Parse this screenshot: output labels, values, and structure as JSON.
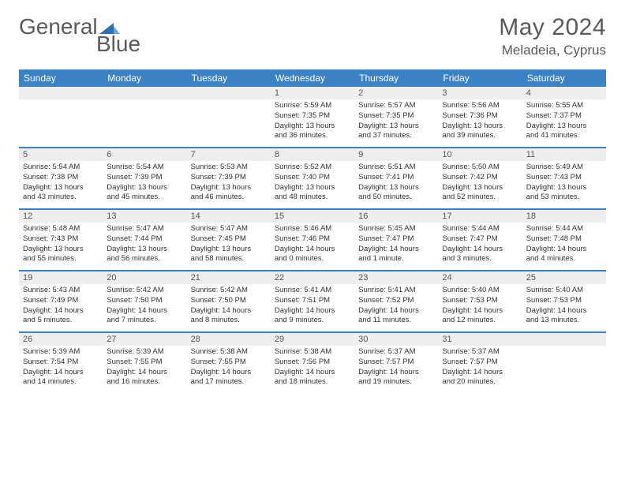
{
  "brand": {
    "part1": "General",
    "part2": "Blue"
  },
  "title": "May 2024",
  "location": "Meladeia, Cyprus",
  "colors": {
    "header_bar": "#3b82c4",
    "weekday_text": "#ffffff",
    "daynum_bg": "#eeeeee",
    "text": "#333333",
    "title_text": "#5a5a5a",
    "logo_blue": "#2e6fb0"
  },
  "weekdays": [
    "Sunday",
    "Monday",
    "Tuesday",
    "Wednesday",
    "Thursday",
    "Friday",
    "Saturday"
  ],
  "weeks": [
    [
      {
        "n": "",
        "lines": []
      },
      {
        "n": "",
        "lines": []
      },
      {
        "n": "",
        "lines": []
      },
      {
        "n": "1",
        "lines": [
          "Sunrise: 5:59 AM",
          "Sunset: 7:35 PM",
          "Daylight: 13 hours",
          "and 36 minutes."
        ]
      },
      {
        "n": "2",
        "lines": [
          "Sunrise: 5:57 AM",
          "Sunset: 7:35 PM",
          "Daylight: 13 hours",
          "and 37 minutes."
        ]
      },
      {
        "n": "3",
        "lines": [
          "Sunrise: 5:56 AM",
          "Sunset: 7:36 PM",
          "Daylight: 13 hours",
          "and 39 minutes."
        ]
      },
      {
        "n": "4",
        "lines": [
          "Sunrise: 5:55 AM",
          "Sunset: 7:37 PM",
          "Daylight: 13 hours",
          "and 41 minutes."
        ]
      }
    ],
    [
      {
        "n": "5",
        "lines": [
          "Sunrise: 5:54 AM",
          "Sunset: 7:38 PM",
          "Daylight: 13 hours",
          "and 43 minutes."
        ]
      },
      {
        "n": "6",
        "lines": [
          "Sunrise: 5:54 AM",
          "Sunset: 7:39 PM",
          "Daylight: 13 hours",
          "and 45 minutes."
        ]
      },
      {
        "n": "7",
        "lines": [
          "Sunrise: 5:53 AM",
          "Sunset: 7:39 PM",
          "Daylight: 13 hours",
          "and 46 minutes."
        ]
      },
      {
        "n": "8",
        "lines": [
          "Sunrise: 5:52 AM",
          "Sunset: 7:40 PM",
          "Daylight: 13 hours",
          "and 48 minutes."
        ]
      },
      {
        "n": "9",
        "lines": [
          "Sunrise: 5:51 AM",
          "Sunset: 7:41 PM",
          "Daylight: 13 hours",
          "and 50 minutes."
        ]
      },
      {
        "n": "10",
        "lines": [
          "Sunrise: 5:50 AM",
          "Sunset: 7:42 PM",
          "Daylight: 13 hours",
          "and 52 minutes."
        ]
      },
      {
        "n": "11",
        "lines": [
          "Sunrise: 5:49 AM",
          "Sunset: 7:43 PM",
          "Daylight: 13 hours",
          "and 53 minutes."
        ]
      }
    ],
    [
      {
        "n": "12",
        "lines": [
          "Sunrise: 5:48 AM",
          "Sunset: 7:43 PM",
          "Daylight: 13 hours",
          "and 55 minutes."
        ]
      },
      {
        "n": "13",
        "lines": [
          "Sunrise: 5:47 AM",
          "Sunset: 7:44 PM",
          "Daylight: 13 hours",
          "and 56 minutes."
        ]
      },
      {
        "n": "14",
        "lines": [
          "Sunrise: 5:47 AM",
          "Sunset: 7:45 PM",
          "Daylight: 13 hours",
          "and 58 minutes."
        ]
      },
      {
        "n": "15",
        "lines": [
          "Sunrise: 5:46 AM",
          "Sunset: 7:46 PM",
          "Daylight: 14 hours",
          "and 0 minutes."
        ]
      },
      {
        "n": "16",
        "lines": [
          "Sunrise: 5:45 AM",
          "Sunset: 7:47 PM",
          "Daylight: 14 hours",
          "and 1 minute."
        ]
      },
      {
        "n": "17",
        "lines": [
          "Sunrise: 5:44 AM",
          "Sunset: 7:47 PM",
          "Daylight: 14 hours",
          "and 3 minutes."
        ]
      },
      {
        "n": "18",
        "lines": [
          "Sunrise: 5:44 AM",
          "Sunset: 7:48 PM",
          "Daylight: 14 hours",
          "and 4 minutes."
        ]
      }
    ],
    [
      {
        "n": "19",
        "lines": [
          "Sunrise: 5:43 AM",
          "Sunset: 7:49 PM",
          "Daylight: 14 hours",
          "and 5 minutes."
        ]
      },
      {
        "n": "20",
        "lines": [
          "Sunrise: 5:42 AM",
          "Sunset: 7:50 PM",
          "Daylight: 14 hours",
          "and 7 minutes."
        ]
      },
      {
        "n": "21",
        "lines": [
          "Sunrise: 5:42 AM",
          "Sunset: 7:50 PM",
          "Daylight: 14 hours",
          "and 8 minutes."
        ]
      },
      {
        "n": "22",
        "lines": [
          "Sunrise: 5:41 AM",
          "Sunset: 7:51 PM",
          "Daylight: 14 hours",
          "and 9 minutes."
        ]
      },
      {
        "n": "23",
        "lines": [
          "Sunrise: 5:41 AM",
          "Sunset: 7:52 PM",
          "Daylight: 14 hours",
          "and 11 minutes."
        ]
      },
      {
        "n": "24",
        "lines": [
          "Sunrise: 5:40 AM",
          "Sunset: 7:53 PM",
          "Daylight: 14 hours",
          "and 12 minutes."
        ]
      },
      {
        "n": "25",
        "lines": [
          "Sunrise: 5:40 AM",
          "Sunset: 7:53 PM",
          "Daylight: 14 hours",
          "and 13 minutes."
        ]
      }
    ],
    [
      {
        "n": "26",
        "lines": [
          "Sunrise: 5:39 AM",
          "Sunset: 7:54 PM",
          "Daylight: 14 hours",
          "and 14 minutes."
        ]
      },
      {
        "n": "27",
        "lines": [
          "Sunrise: 5:39 AM",
          "Sunset: 7:55 PM",
          "Daylight: 14 hours",
          "and 16 minutes."
        ]
      },
      {
        "n": "28",
        "lines": [
          "Sunrise: 5:38 AM",
          "Sunset: 7:55 PM",
          "Daylight: 14 hours",
          "and 17 minutes."
        ]
      },
      {
        "n": "29",
        "lines": [
          "Sunrise: 5:38 AM",
          "Sunset: 7:56 PM",
          "Daylight: 14 hours",
          "and 18 minutes."
        ]
      },
      {
        "n": "30",
        "lines": [
          "Sunrise: 5:37 AM",
          "Sunset: 7:57 PM",
          "Daylight: 14 hours",
          "and 19 minutes."
        ]
      },
      {
        "n": "31",
        "lines": [
          "Sunrise: 5:37 AM",
          "Sunset: 7:57 PM",
          "Daylight: 14 hours",
          "and 20 minutes."
        ]
      },
      {
        "n": "",
        "lines": []
      }
    ]
  ]
}
